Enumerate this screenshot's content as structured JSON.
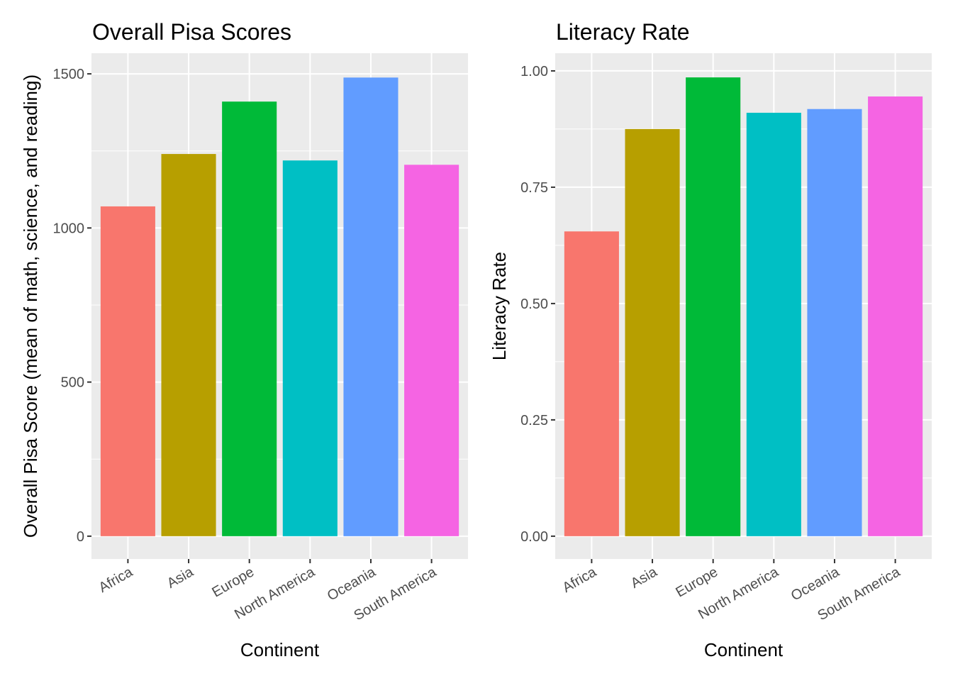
{
  "chart_data": [
    {
      "type": "bar",
      "title": "Overall Pisa Scores",
      "xlabel": "Continent",
      "ylabel": "Overall Pisa Score (mean of math, science, and reading)",
      "categories": [
        "Africa",
        "Asia",
        "Europe",
        "North America",
        "Oceania",
        "South America"
      ],
      "values": [
        1070,
        1240,
        1410,
        1219,
        1488,
        1205
      ],
      "colors": [
        "#F8766D",
        "#B79F00",
        "#00BA38",
        "#00BFC4",
        "#619CFF",
        "#F564E3"
      ],
      "yticks": [
        0,
        500,
        1000,
        1500
      ],
      "ytick_labels": [
        "0",
        "500",
        "1000",
        "1500"
      ],
      "yminor": [
        250,
        750,
        1250
      ],
      "ylim": [
        -74,
        1567
      ],
      "grid": true,
      "legend": "none"
    },
    {
      "type": "bar",
      "title": "Literacy Rate",
      "xlabel": "Continent",
      "ylabel": "Literacy Rate",
      "categories": [
        "Africa",
        "Asia",
        "Europe",
        "North America",
        "Oceania",
        "South America"
      ],
      "values": [
        0.655,
        0.875,
        0.986,
        0.91,
        0.918,
        0.945
      ],
      "colors": [
        "#F8766D",
        "#B79F00",
        "#00BA38",
        "#00BFC4",
        "#619CFF",
        "#F564E3"
      ],
      "yticks": [
        0,
        0.25,
        0.5,
        0.75,
        1.0
      ],
      "ytick_labels": [
        "0.00",
        "0.25",
        "0.50",
        "0.75",
        "1.00"
      ],
      "yminor": [
        0.125,
        0.375,
        0.625,
        0.875
      ],
      "ylim": [
        -0.049,
        1.038
      ],
      "grid": true,
      "legend": "none"
    }
  ]
}
